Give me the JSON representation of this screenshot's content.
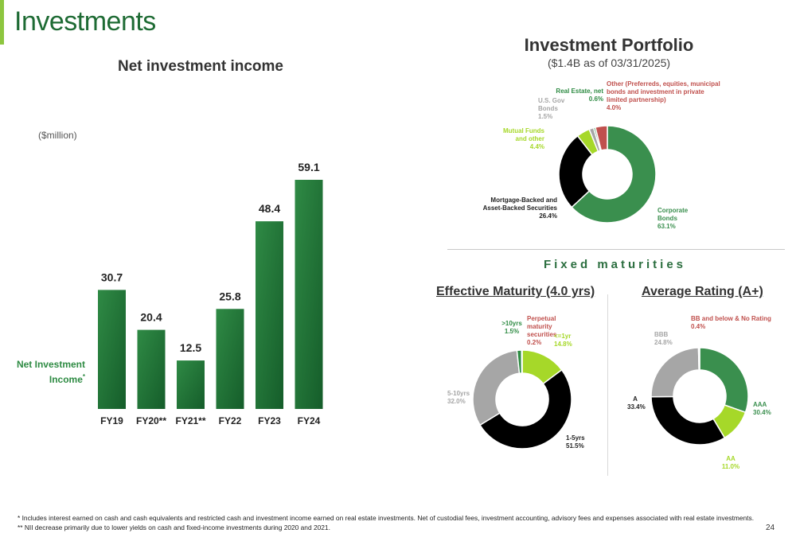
{
  "page": {
    "title": "Investments",
    "page_number": "24"
  },
  "colors": {
    "accent": "#8dc63f",
    "green_dark": "#2e8b43",
    "green_corp": "#3a8f4e",
    "black": "#000000",
    "gray": "#a6a6a6",
    "lime": "#a6d829",
    "red": "#c0504d"
  },
  "nii": {
    "title": "Net investment income",
    "unit": "($million)",
    "series_label": "Net Investment Income",
    "series_mark": "*"
  },
  "portfolio": {
    "title": "Investment Portfolio",
    "subtitle": "($1.4B as of 03/31/2025)"
  },
  "fixed_maturities": {
    "label": "Fixed maturities",
    "effective_title": "Effective Maturity (4.0 yrs)",
    "rating_title": "Average Rating (A+)"
  },
  "footnotes": [
    "* Includes interest earned on cash and cash equivalents and restricted cash and investment income earned on real estate investments. Net of custodial fees, investment accounting, advisory fees and expenses associated with real estate investments.",
    "** NII decrease primarily due to lower yields on cash and fixed-income investments during 2020 and 2021."
  ],
  "chart_data": [
    {
      "type": "bar",
      "title": "Net investment income",
      "categories": [
        "FY19",
        "FY20**",
        "FY21**",
        "FY22",
        "FY23",
        "FY24"
      ],
      "values": [
        30.7,
        20.4,
        12.5,
        25.8,
        48.4,
        59.1
      ],
      "data_labels": [
        "30.7",
        "20.4",
        "12.5",
        "25.8",
        "48.4",
        "59.1"
      ],
      "ylim": [
        0,
        65
      ]
    },
    {
      "type": "pie",
      "title": "Investment Portfolio",
      "slices": [
        {
          "name": "Corporate Bonds",
          "value": 63.1,
          "label": "63.1%",
          "color": "#3a8f4e"
        },
        {
          "name": "Mortgage-Backed and Asset-Backed Securities",
          "value": 26.4,
          "label": "26.4%",
          "color": "#000000"
        },
        {
          "name": "Mutual Funds and other",
          "value": 4.4,
          "label": "4.4%",
          "color": "#a6d829"
        },
        {
          "name": "U.S. Gov Bonds",
          "value": 1.5,
          "label": "1.5%",
          "color": "#a6a6a6"
        },
        {
          "name": "Real Estate, net",
          "value": 0.6,
          "label": "0.6%",
          "color": "#3a8f4e"
        },
        {
          "name": "Other (Preferreds, equities, municipal bonds and investment in private limited partnership)",
          "value": 4.0,
          "label": "4.0%",
          "color": "#c0504d"
        }
      ]
    },
    {
      "type": "pie",
      "title": "Effective Maturity (4.0 yrs)",
      "slices": [
        {
          "name": "<=1yr",
          "value": 14.8,
          "label": "14.8%",
          "color": "#a6d829"
        },
        {
          "name": "1-5yrs",
          "value": 51.5,
          "label": "51.5%",
          "color": "#000000"
        },
        {
          "name": "5-10yrs",
          "value": 32.0,
          "label": "32.0%",
          "color": "#a6a6a6"
        },
        {
          "name": ">10yrs",
          "value": 1.5,
          "label": "1.5%",
          "color": "#2e8b43"
        },
        {
          "name": "Perpetual maturity securities",
          "value": 0.2,
          "label": "0.2%",
          "color": "#c0504d"
        }
      ]
    },
    {
      "type": "pie",
      "title": "Average Rating (A+)",
      "slices": [
        {
          "name": "AAA",
          "value": 30.4,
          "label": "30.4%",
          "color": "#3a8f4e"
        },
        {
          "name": "AA",
          "value": 11.0,
          "label": "11.0%",
          "color": "#a6d829"
        },
        {
          "name": "A",
          "value": 33.4,
          "label": "33.4%",
          "color": "#000000"
        },
        {
          "name": "BBB",
          "value": 24.8,
          "label": "24.8%",
          "color": "#a6a6a6"
        },
        {
          "name": "BB and below & No Rating",
          "value": 0.4,
          "label": "0.4%",
          "color": "#c0504d"
        }
      ]
    }
  ]
}
